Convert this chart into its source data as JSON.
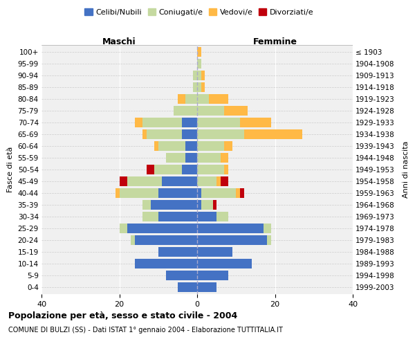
{
  "age_groups": [
    "0-4",
    "5-9",
    "10-14",
    "15-19",
    "20-24",
    "25-29",
    "30-34",
    "35-39",
    "40-44",
    "45-49",
    "50-54",
    "55-59",
    "60-64",
    "65-69",
    "70-74",
    "75-79",
    "80-84",
    "85-89",
    "90-94",
    "95-99",
    "100+"
  ],
  "birth_years": [
    "1999-2003",
    "1994-1998",
    "1989-1993",
    "1984-1988",
    "1979-1983",
    "1974-1978",
    "1969-1973",
    "1964-1968",
    "1959-1963",
    "1954-1958",
    "1949-1953",
    "1944-1948",
    "1939-1943",
    "1934-1938",
    "1929-1933",
    "1924-1928",
    "1919-1923",
    "1914-1918",
    "1909-1913",
    "1904-1908",
    "≤ 1903"
  ],
  "male": {
    "celibi": [
      5,
      8,
      16,
      10,
      16,
      18,
      10,
      12,
      10,
      9,
      4,
      3,
      3,
      4,
      4,
      0,
      0,
      0,
      0,
      0,
      0
    ],
    "coniugati": [
      0,
      0,
      0,
      0,
      1,
      2,
      4,
      2,
      10,
      9,
      7,
      5,
      7,
      9,
      10,
      6,
      3,
      1,
      1,
      0,
      0
    ],
    "vedovi": [
      0,
      0,
      0,
      0,
      0,
      0,
      0,
      0,
      1,
      0,
      0,
      0,
      1,
      1,
      2,
      0,
      2,
      0,
      0,
      0,
      0
    ],
    "divorziati": [
      0,
      0,
      0,
      0,
      0,
      0,
      0,
      0,
      0,
      2,
      2,
      0,
      0,
      0,
      0,
      0,
      0,
      0,
      0,
      0,
      0
    ]
  },
  "female": {
    "nubili": [
      5,
      8,
      14,
      9,
      18,
      17,
      5,
      1,
      1,
      0,
      0,
      0,
      0,
      0,
      0,
      0,
      0,
      0,
      0,
      0,
      0
    ],
    "coniugate": [
      0,
      0,
      0,
      0,
      1,
      2,
      3,
      3,
      9,
      5,
      7,
      6,
      7,
      12,
      11,
      7,
      3,
      1,
      1,
      1,
      0
    ],
    "vedove": [
      0,
      0,
      0,
      0,
      0,
      0,
      0,
      0,
      1,
      1,
      1,
      2,
      2,
      15,
      8,
      6,
      5,
      1,
      1,
      0,
      1
    ],
    "divorziate": [
      0,
      0,
      0,
      0,
      0,
      0,
      0,
      1,
      1,
      2,
      0,
      0,
      0,
      0,
      0,
      0,
      0,
      0,
      0,
      0,
      0
    ]
  },
  "colors": {
    "celibi": "#4472C4",
    "coniugati": "#c5d9a0",
    "vedovi": "#FFB946",
    "divorziati": "#C0000C"
  },
  "xlim": 40,
  "title": "Popolazione per età, sesso e stato civile - 2004",
  "subtitle": "COMUNE DI BULZI (SS) - Dati ISTAT 1° gennaio 2004 - Elaborazione TUTTITALIA.IT",
  "ylabel_left": "Fasce di età",
  "ylabel_right": "Anni di nascita",
  "xlabel_left": "Maschi",
  "xlabel_right": "Femmine",
  "legend_labels": [
    "Celibi/Nubili",
    "Coniugati/e",
    "Vedovi/e",
    "Divorziati/e"
  ],
  "bg_color": "#f0f0f0"
}
